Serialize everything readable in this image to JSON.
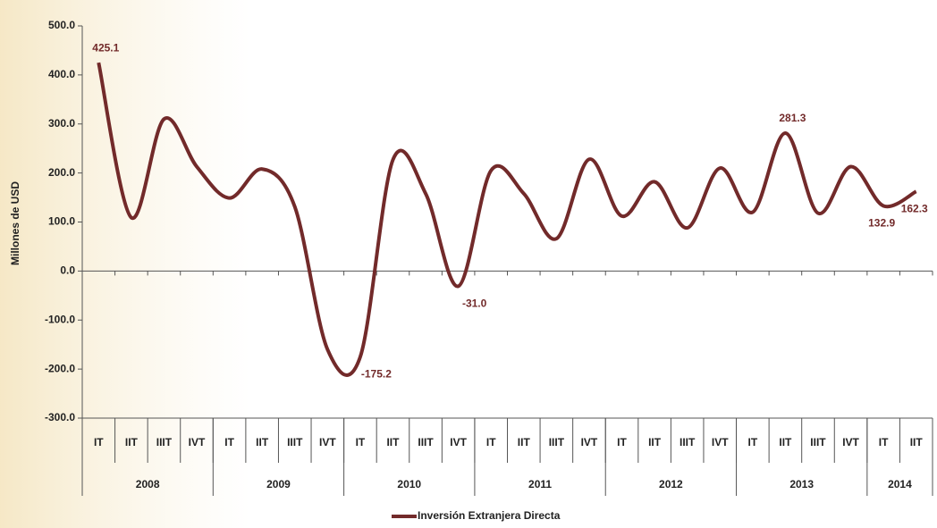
{
  "chart_data": {
    "type": "line",
    "y_axis_label": "Millones de USD",
    "categories": [
      "IT",
      "IIT",
      "IIIT",
      "IVT",
      "IT",
      "IIT",
      "IIIT",
      "IVT",
      "IT",
      "IIT",
      "IIIT",
      "IVT",
      "IT",
      "IIT",
      "IIIT",
      "IVT",
      "IT",
      "IIT",
      "IIIT",
      "IVT",
      "IT",
      "IIT",
      "IIIT",
      "IVT",
      "IT",
      "IIT"
    ],
    "year_groups": [
      {
        "label": "2008",
        "count": 4
      },
      {
        "label": "2009",
        "count": 4
      },
      {
        "label": "2010",
        "count": 4
      },
      {
        "label": "2011",
        "count": 4
      },
      {
        "label": "2012",
        "count": 4
      },
      {
        "label": "2013",
        "count": 4
      },
      {
        "label": "2014",
        "count": 2
      }
    ],
    "series": [
      {
        "name": "Inversión Extranjera Directa",
        "color": "#722a2a",
        "values": [
          425.1,
          109,
          310,
          213,
          149,
          208,
          131,
          -160,
          -175.2,
          227,
          158,
          -31.0,
          205,
          158,
          66,
          228,
          112,
          182,
          88,
          210,
          120,
          281.3,
          118,
          213,
          132.9,
          162.3
        ],
        "value_labels": [
          "425.1",
          null,
          null,
          null,
          null,
          null,
          null,
          null,
          "-175.2",
          null,
          null,
          "-31.0",
          null,
          null,
          null,
          null,
          null,
          null,
          null,
          null,
          null,
          "281.3",
          null,
          null,
          "132.9",
          "162.3"
        ]
      }
    ],
    "ylim": [
      -300,
      500
    ],
    "yticks": [
      {
        "value": -300,
        "label": "-300.0"
      },
      {
        "value": -200,
        "label": "-200.0"
      },
      {
        "value": -100,
        "label": "-100.0"
      },
      {
        "value": 0,
        "label": "0.0"
      },
      {
        "value": 100,
        "label": "100.0"
      },
      {
        "value": 200,
        "label": "200.0"
      },
      {
        "value": 300,
        "label": "300.0"
      },
      {
        "value": 400,
        "label": "400.0"
      },
      {
        "value": 500,
        "label": "500.0"
      }
    ],
    "legend": "bottom"
  }
}
